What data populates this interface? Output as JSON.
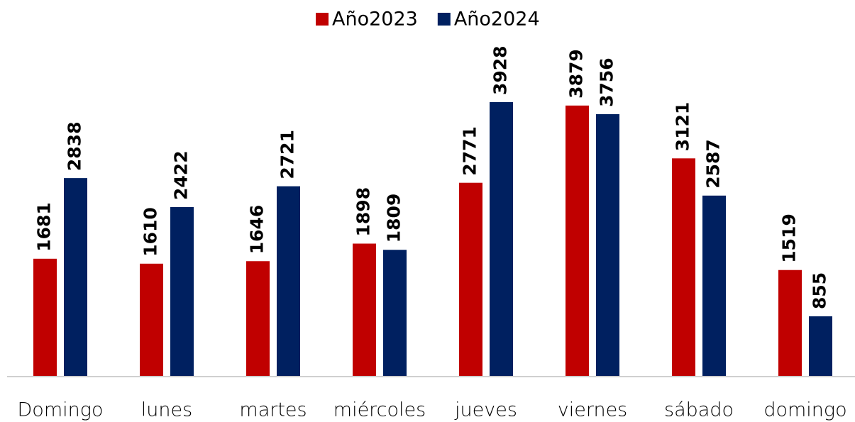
{
  "chart_data": {
    "type": "bar",
    "categories": [
      "Domingo",
      "lunes",
      "martes",
      "miércoles",
      "jueves",
      "viernes",
      "sábado",
      "domingo"
    ],
    "series": [
      {
        "name": "Año2023",
        "color": "#c00000",
        "values": [
          1681,
          1610,
          1646,
          1898,
          2771,
          3879,
          3121,
          1519
        ]
      },
      {
        "name": "Año2024",
        "color": "#002060",
        "values": [
          2838,
          2422,
          2721,
          1809,
          3928,
          3756,
          2587,
          855
        ]
      }
    ],
    "legend": "top"
  }
}
